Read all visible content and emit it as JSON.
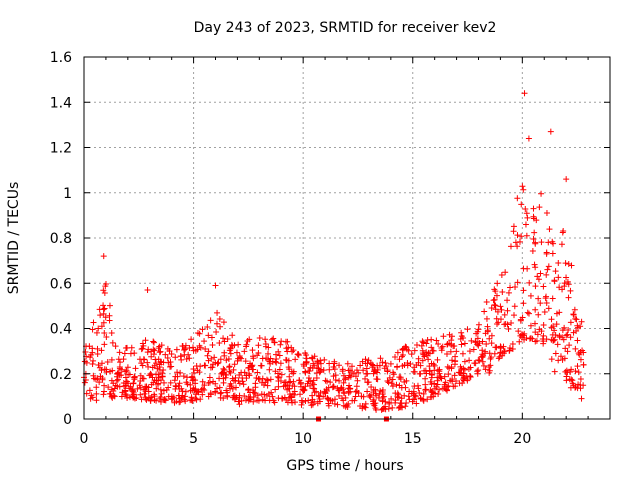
{
  "chart_data": {
    "type": "scatter",
    "title": "Day 243 of 2023, SRMTID for receiver kev2",
    "xlabel": "GPS time / hours",
    "ylabel": "SRMTID / TECUs",
    "xlim": [
      0,
      24
    ],
    "ylim": [
      0,
      1.6
    ],
    "xticks": [
      0,
      5,
      10,
      15,
      20
    ],
    "xtick_labels": [
      "0",
      "5",
      "10",
      "15",
      "20"
    ],
    "yticks": [
      0,
      0.2,
      0.4,
      0.6,
      0.8,
      1.0,
      1.2,
      1.4,
      1.6
    ],
    "ytick_labels": [
      "0",
      "0.2",
      "0.4",
      "0.6",
      "0.8",
      "1",
      "1.2",
      "1.4",
      "1.6"
    ],
    "grid": true,
    "marker": "+",
    "color": "#ff0000",
    "data_span_hours": [
      0,
      22.8
    ],
    "notable_points": [
      {
        "x": 0.9,
        "y": 0.72
      },
      {
        "x": 2.9,
        "y": 0.57
      },
      {
        "x": 6.0,
        "y": 0.59
      },
      {
        "x": 19.6,
        "y": 0.83
      },
      {
        "x": 20.1,
        "y": 1.44
      },
      {
        "x": 20.3,
        "y": 1.24
      },
      {
        "x": 21.3,
        "y": 1.27
      },
      {
        "x": 22.0,
        "y": 1.06
      },
      {
        "x": 22.7,
        "y": 0.09
      }
    ],
    "gap_markers_x": [
      10.7,
      13.8
    ],
    "series": [
      {
        "name": "SRMTID",
        "profile": [
          {
            "x": 0.0,
            "low": 0.1,
            "high": 0.32
          },
          {
            "x": 0.5,
            "low": 0.08,
            "high": 0.45
          },
          {
            "x": 1.0,
            "low": 0.08,
            "high": 0.62
          },
          {
            "x": 1.5,
            "low": 0.1,
            "high": 0.3
          },
          {
            "x": 2.5,
            "low": 0.08,
            "high": 0.34
          },
          {
            "x": 3.0,
            "low": 0.08,
            "high": 0.36
          },
          {
            "x": 4.0,
            "low": 0.07,
            "high": 0.3
          },
          {
            "x": 5.0,
            "low": 0.08,
            "high": 0.36
          },
          {
            "x": 6.0,
            "low": 0.1,
            "high": 0.5
          },
          {
            "x": 7.0,
            "low": 0.06,
            "high": 0.34
          },
          {
            "x": 8.0,
            "low": 0.08,
            "high": 0.38
          },
          {
            "x": 9.0,
            "low": 0.07,
            "high": 0.36
          },
          {
            "x": 10.0,
            "low": 0.06,
            "high": 0.3
          },
          {
            "x": 11.0,
            "low": 0.06,
            "high": 0.26
          },
          {
            "x": 12.0,
            "low": 0.05,
            "high": 0.25
          },
          {
            "x": 13.0,
            "low": 0.04,
            "high": 0.28
          },
          {
            "x": 14.0,
            "low": 0.04,
            "high": 0.28
          },
          {
            "x": 15.0,
            "low": 0.06,
            "high": 0.34
          },
          {
            "x": 16.0,
            "low": 0.1,
            "high": 0.36
          },
          {
            "x": 17.0,
            "low": 0.14,
            "high": 0.38
          },
          {
            "x": 18.0,
            "low": 0.2,
            "high": 0.42
          },
          {
            "x": 18.5,
            "low": 0.2,
            "high": 0.55
          },
          {
            "x": 19.0,
            "low": 0.26,
            "high": 0.65
          },
          {
            "x": 19.5,
            "low": 0.3,
            "high": 0.8
          },
          {
            "x": 20.0,
            "low": 0.35,
            "high": 1.15
          },
          {
            "x": 20.5,
            "low": 0.35,
            "high": 1.0
          },
          {
            "x": 21.0,
            "low": 0.3,
            "high": 1.05
          },
          {
            "x": 21.5,
            "low": 0.2,
            "high": 0.8
          },
          {
            "x": 22.0,
            "low": 0.15,
            "high": 0.85
          },
          {
            "x": 22.5,
            "low": 0.12,
            "high": 0.5
          },
          {
            "x": 22.8,
            "low": 0.15,
            "high": 0.4
          }
        ]
      }
    ]
  }
}
